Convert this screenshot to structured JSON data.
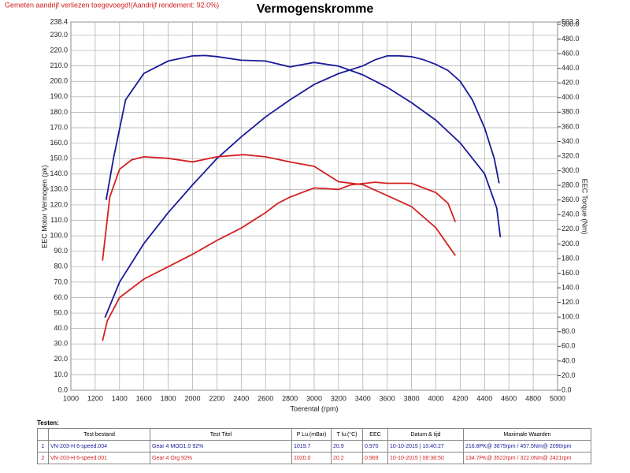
{
  "chart_data": {
    "type": "line",
    "title": "Vermogenskromme",
    "note": "Gemeten aandrijf verliezen toegevoegd!(Aandrijf rendement: 92.0%)",
    "x_label": "Toerental (rpm)",
    "y_label": "EEC Motor Vermogen (pk)",
    "y2_label": "EEC Torque (Nm)",
    "grid": true,
    "xlim": [
      1000,
      5000
    ],
    "xticks": [
      1000,
      1200,
      1400,
      1600,
      1800,
      2000,
      2200,
      2400,
      2600,
      2800,
      3000,
      3200,
      3400,
      3600,
      3800,
      4000,
      4200,
      4400,
      4600,
      4800,
      5000
    ],
    "ylim": [
      0,
      238.4
    ],
    "yticks": [
      {
        "value": 0,
        "label": "0.0"
      },
      {
        "value": 10,
        "label": "10.0"
      },
      {
        "value": 20,
        "label": "20.0"
      },
      {
        "value": 30,
        "label": "30.0"
      },
      {
        "value": 40,
        "label": "40.0"
      },
      {
        "value": 50,
        "label": "50.0"
      },
      {
        "value": 60,
        "label": "60.0"
      },
      {
        "value": 70,
        "label": "70.0"
      },
      {
        "value": 80,
        "label": "80.0"
      },
      {
        "value": 90,
        "label": "90.0"
      },
      {
        "value": 100,
        "label": "100.0"
      },
      {
        "value": 110,
        "label": "110.0"
      },
      {
        "value": 120,
        "label": "120.0"
      },
      {
        "value": 130,
        "label": "130.0"
      },
      {
        "value": 140,
        "label": "140.0"
      },
      {
        "value": 150,
        "label": "150.0"
      },
      {
        "value": 160,
        "label": "160.0"
      },
      {
        "value": 170,
        "label": "170.0"
      },
      {
        "value": 180,
        "label": "180.0"
      },
      {
        "value": 190,
        "label": "190.0"
      },
      {
        "value": 200,
        "label": "200.0"
      },
      {
        "value": 210,
        "label": "210.0"
      },
      {
        "value": 220,
        "label": "220.0"
      },
      {
        "value": 230,
        "label": "230.0"
      },
      238.4
    ],
    "y2lim": [
      0,
      503.2
    ],
    "y2ticks": [
      {
        "value": 0,
        "label": "0.0"
      },
      {
        "value": 20,
        "label": "20.0"
      },
      {
        "value": 40,
        "label": "40.0"
      },
      {
        "value": 60,
        "label": "60.0"
      },
      {
        "value": 80,
        "label": "80.0"
      },
      {
        "value": 100,
        "label": "100.0"
      },
      {
        "value": 120,
        "label": "120.0"
      },
      {
        "value": 140,
        "label": "140.0"
      },
      {
        "value": 160,
        "label": "160.0"
      },
      {
        "value": 180,
        "label": "180.0"
      },
      {
        "value": 200,
        "label": "200.0"
      },
      {
        "value": 220,
        "label": "220.0"
      },
      {
        "value": 240,
        "label": "240.0"
      },
      {
        "value": 260,
        "label": "260.0"
      },
      {
        "value": 280,
        "label": "280.0"
      },
      {
        "value": 300,
        "label": "300.0"
      },
      {
        "value": 320,
        "label": "320.0"
      },
      {
        "value": 340,
        "label": "340.0"
      },
      {
        "value": 360,
        "label": "360.0"
      },
      {
        "value": 380,
        "label": "380.0"
      },
      {
        "value": 400,
        "label": "400.0"
      },
      {
        "value": 420,
        "label": "420.0"
      },
      {
        "value": 440,
        "label": "440.0"
      },
      {
        "value": 460,
        "label": "460.0"
      },
      {
        "value": 480,
        "label": "480.0"
      },
      {
        "value": 500,
        "label": "500.0"
      },
      503.2
    ],
    "series": [
      {
        "color": "#1a1a9a",
        "axis": "y",
        "x": [
          1280,
          1400,
          1600,
          1800,
          2000,
          2200,
          2400,
          2600,
          2800,
          3000,
          3200,
          3400,
          3500,
          3600,
          3700,
          3800,
          3900,
          4000,
          4100,
          4200,
          4300,
          4400,
          4480,
          4520
        ],
        "values": [
          47,
          70,
          95,
          115,
          133,
          150,
          164,
          177,
          188,
          198,
          205,
          210,
          214,
          216.5,
          216.5,
          216,
          214,
          211,
          207,
          200,
          188,
          170,
          150,
          134
        ]
      },
      {
        "color": "#1a1a9a",
        "axis": "y2",
        "x": [
          1290,
          1350,
          1450,
          1600,
          1800,
          2000,
          2100,
          2200,
          2400,
          2600,
          2800,
          3000,
          3200,
          3400,
          3600,
          3800,
          4000,
          4200,
          4400,
          4500,
          4530
        ],
        "values": [
          260,
          317,
          397,
          433,
          450,
          457,
          457.5,
          456,
          451,
          450,
          442,
          448,
          443,
          431,
          414,
          393,
          369,
          338,
          296,
          249,
          209
        ]
      },
      {
        "color": "#d42020",
        "axis": "y",
        "x": [
          1260,
          1300,
          1400,
          1600,
          1800,
          2000,
          2200,
          2400,
          2600,
          2700,
          2800,
          3000,
          3200,
          3300,
          3500,
          3600,
          3800,
          4000,
          4100,
          4160
        ],
        "values": [
          32,
          45,
          60,
          72,
          80,
          88,
          97,
          105,
          115,
          121,
          125,
          131,
          130,
          133,
          134.7,
          134,
          134,
          128,
          121,
          109
        ]
      },
      {
        "color": "#d42020",
        "axis": "y2",
        "x": [
          1260,
          1320,
          1400,
          1500,
          1600,
          1800,
          2000,
          2200,
          2421,
          2600,
          2800,
          3000,
          3200,
          3400,
          3600,
          3800,
          4000,
          4160
        ],
        "values": [
          177,
          264,
          302,
          315,
          319,
          317,
          312,
          319,
          322,
          319,
          312,
          306,
          285,
          281,
          266,
          251,
          222,
          184
        ]
      }
    ]
  },
  "table": {
    "title": "Testen:",
    "columns": [
      "Test bestand",
      "Test Titel",
      "P Lu.(mBar)",
      "T lu.(°C)",
      "EEC",
      "Datum & tijd",
      "Maximale Waarden"
    ],
    "rows": [
      {
        "color": "#1a1a9a",
        "cells": [
          "1",
          "VN-203-H  6-speed.004",
          "Gear 4  MOD1.0  92%",
          "1019.7",
          "20.9",
          "0.970",
          "10-10-2015 | 10:40:27",
          "216.8PK@ 3675rpm / 457.5Nm@ 2090rpm"
        ]
      },
      {
        "color": "#d42020",
        "cells": [
          "2",
          "VN-203-H  6-speed.001",
          "Gear 4  Org 92%",
          "1020.0",
          "20.2",
          "0.969",
          "10-10-2015 | 08:38:50",
          "134.7PK@ 3522rpm / 322.0Nm@ 2421rpm"
        ]
      }
    ]
  }
}
